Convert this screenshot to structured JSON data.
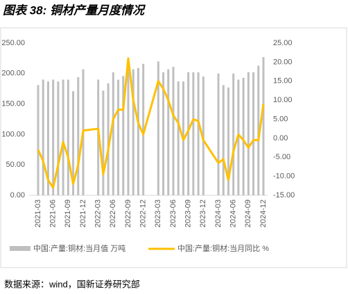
{
  "chart_data": {
    "type": "bar_line",
    "title": "图表 38:  铜材产量月度情况",
    "source": "数据来源：wind，国新证券研究部",
    "categories": [
      "2021-03",
      null,
      null,
      "2021-06",
      null,
      null,
      "2021-09",
      null,
      null,
      "2021-12",
      null,
      null,
      "2022-03",
      null,
      null,
      "2022-06",
      null,
      null,
      "2022-09",
      null,
      null,
      "2022-12",
      null,
      null,
      "2023-03",
      null,
      null,
      "2023-06",
      null,
      null,
      "2023-09",
      null,
      null,
      "2023-12",
      null,
      null,
      "2024-03",
      null,
      null,
      "2024-06",
      null,
      null,
      "2024-09",
      null,
      null,
      "2024-12"
    ],
    "series": [
      {
        "name": "中国:产量:铜材:当月值 万吨",
        "color": "#bfbfbf",
        "axis": "y",
        "values": [
          181,
          190,
          187,
          190,
          187,
          190,
          190,
          171,
          194,
          207,
          null,
          null,
          190,
          172,
          184,
          202,
          190,
          196,
          222,
          207,
          209,
          216,
          null,
          null,
          220,
          202,
          207,
          211,
          187,
          187,
          202,
          202,
          202,
          195,
          null,
          null,
          200,
          181,
          177,
          200,
          190,
          193,
          202,
          202,
          213,
          227
        ]
      },
      {
        "name": "中国:产量:铜材:当月同比 %",
        "color": "#ffc000",
        "axis": "y2",
        "values": [
          -3,
          -6,
          -11,
          -13,
          -7,
          -1,
          -5,
          -12,
          -7,
          2,
          null,
          null,
          2.5,
          -9.5,
          -3,
          5,
          7.5,
          7.5,
          21,
          10,
          4,
          1,
          null,
          null,
          15,
          13,
          10,
          6,
          4,
          -0.5,
          2,
          5,
          4.5,
          -0.5,
          null,
          null,
          -6.5,
          -5.5,
          -11,
          -3.5,
          1,
          -0.5,
          -2.5,
          -0.5,
          -0.5,
          9
        ]
      }
    ],
    "connect_gaps": true,
    "ylim": [
      0,
      250
    ],
    "yticks": [
      {
        "value": 0,
        "label": "0.00"
      },
      {
        "value": 50,
        "label": "50.00"
      },
      {
        "value": 100,
        "label": "100.00"
      },
      {
        "value": 150,
        "label": "150.00"
      },
      {
        "value": 200,
        "label": "200.00"
      },
      {
        "value": 250,
        "label": "250.00"
      }
    ],
    "y2lim": [
      -15,
      25
    ],
    "y2ticks": [
      {
        "value": -15,
        "label": "-15.00"
      },
      {
        "value": -10,
        "label": "-10.00"
      },
      {
        "value": -5,
        "label": "-5.00"
      },
      {
        "value": 0,
        "label": "0.00"
      },
      {
        "value": 5,
        "label": "5.00"
      },
      {
        "value": 10,
        "label": "10.00"
      },
      {
        "value": 15,
        "label": "15.00"
      },
      {
        "value": 20,
        "label": "20.00"
      },
      {
        "value": 25,
        "label": "25.00"
      }
    ]
  }
}
